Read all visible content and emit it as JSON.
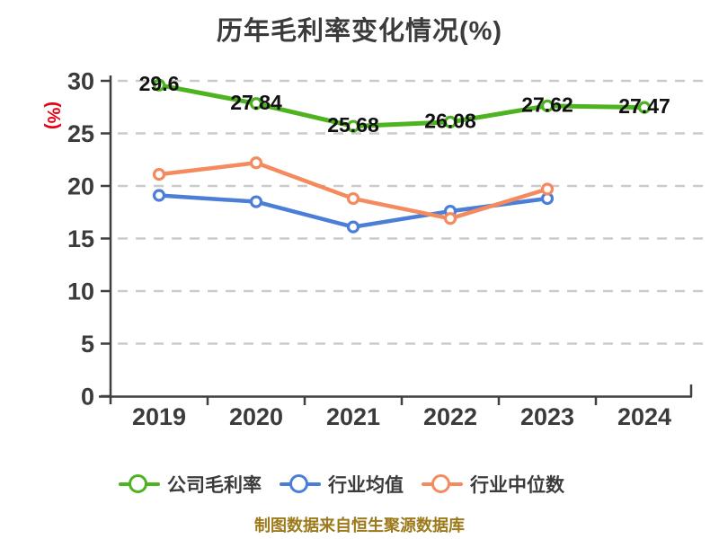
{
  "title": "历年毛利率变化情况(%)",
  "footer": "制图数据来自恒生聚源数据库",
  "colors": {
    "background": "#ffffff",
    "title_text": "#3b3b3b",
    "axis": "#3f3f3f",
    "gridline": "#cbcbcb",
    "y_unit_label": "#e60012",
    "data_label": "#111111",
    "legend_text": "#3b3b3b",
    "footer_text": "#9c7a1c",
    "series_green": "#4eb320",
    "series_blue": "#4b7ed6",
    "series_orange": "#f48a5e"
  },
  "chart_data": {
    "type": "line",
    "title": "历年毛利率变化情况(%)",
    "ylabel": "(%)",
    "xlabel": "",
    "categories": [
      "2019",
      "2020",
      "2021",
      "2022",
      "2023",
      "2024"
    ],
    "ylim": [
      0,
      30
    ],
    "yticks": [
      0,
      5,
      10,
      15,
      20,
      25,
      30
    ],
    "grid": "horizontal-dashed",
    "legend_position": "bottom",
    "marker_style": "white-filled-circle",
    "series": [
      {
        "id": "company-gross-margin",
        "name": "公司毛利率",
        "color": "#4eb320",
        "values": [
          29.6,
          27.84,
          25.68,
          26.08,
          27.62,
          27.47
        ],
        "labels": [
          "29.6",
          "27.84",
          "25.68",
          "26.08",
          "27.62",
          "27.47"
        ],
        "show_labels": true
      },
      {
        "id": "industry-average",
        "name": "行业均值",
        "color": "#4b7ed6",
        "values": [
          19.1,
          18.5,
          16.1,
          17.6,
          18.8
        ],
        "labels": [],
        "show_labels": false
      },
      {
        "id": "industry-median",
        "name": "行业中位数",
        "color": "#f48a5e",
        "values": [
          21.1,
          22.2,
          18.8,
          16.9,
          19.7
        ],
        "labels": [],
        "show_labels": false
      }
    ]
  }
}
